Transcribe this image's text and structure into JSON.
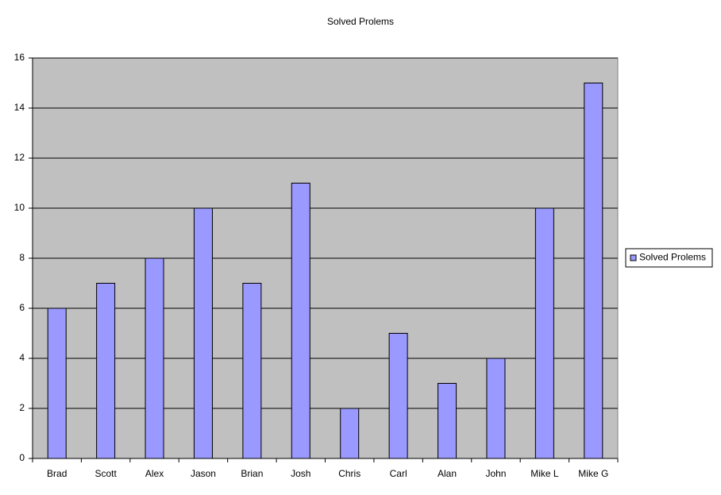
{
  "chart_data": {
    "type": "bar",
    "title": "Solved Prolems",
    "categories": [
      "Brad",
      "Scott",
      "Alex",
      "Jason",
      "Brian",
      "Josh",
      "Chris",
      "Carl",
      "Alan",
      "John",
      "Mike L",
      "Mike G"
    ],
    "series": [
      {
        "name": "Solved Prolems",
        "color": "#9999ff",
        "values": [
          6,
          7,
          8,
          10,
          7,
          11,
          2,
          5,
          3,
          4,
          10,
          15
        ]
      }
    ],
    "ylim": [
      0,
      16
    ],
    "yticks": [
      0,
      2,
      4,
      6,
      8,
      10,
      12,
      14,
      16
    ],
    "grid": true,
    "legend": "right"
  }
}
